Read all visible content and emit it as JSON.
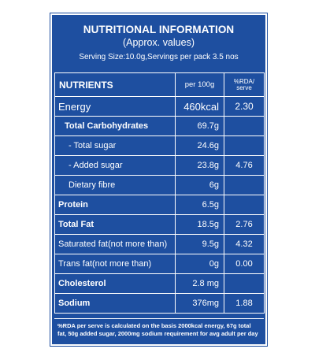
{
  "header": {
    "title": "NUTRITIONAL INFORMATION",
    "subtitle": "(Approx. values)",
    "serving": "Serving Size:10.0g,Servings per pack 3.5 nos"
  },
  "columns": {
    "nutrients": "NUTRIENTS",
    "per100g": "per 100g",
    "rda_line1": "%RDA/",
    "rda_line2": "serve"
  },
  "rows": [
    {
      "name": "Energy",
      "value": "460kcal",
      "rda": "2.30"
    },
    {
      "name": "Total Carbohydrates",
      "value": "69.7g",
      "rda": ""
    },
    {
      "name": "- Total sugar",
      "value": "24.6g",
      "rda": ""
    },
    {
      "name": "-  Added sugar",
      "value": "23.8g",
      "rda": "4.76"
    },
    {
      "name": "Dietary fibre",
      "value": "6g",
      "rda": ""
    },
    {
      "name": "Protein",
      "value": "6.5g",
      "rda": ""
    },
    {
      "name": "Total Fat",
      "value": "18.5g",
      "rda": "2.76"
    },
    {
      "name": "Saturated fat(not more than)",
      "value": "9.5g",
      "rda": "4.32"
    },
    {
      "name": "Trans fat(not more than)",
      "value": "0g",
      "rda": "0.00"
    },
    {
      "name": "Cholesterol",
      "value": "2.8 mg",
      "rda": ""
    },
    {
      "name": "Sodium",
      "value": "376mg",
      "rda": "1.88"
    }
  ],
  "footnote": "%RDA per serve is calculated on the basis 2000kcal energy, 67g total fat, 50g added sugar, 2000mg sodium requirement for avg adult per day",
  "colors": {
    "panel": "#1e4fa0",
    "text": "#ffffff"
  }
}
